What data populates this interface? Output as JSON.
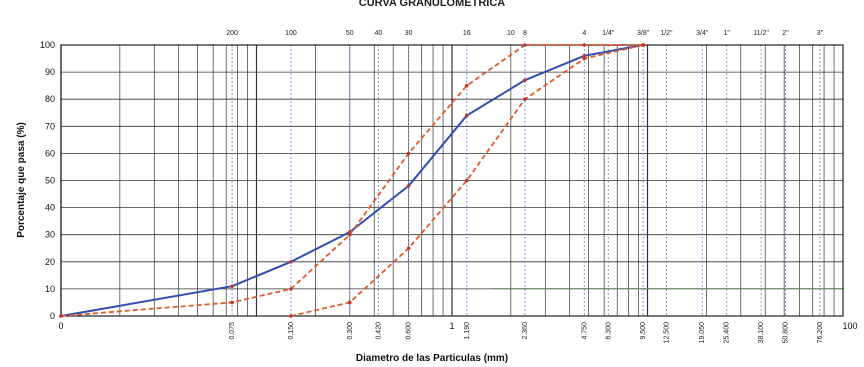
{
  "chart_data": {
    "type": "line",
    "title": "CURVA GRANULOMETRICA",
    "xlabel": "Diametro de las Particulas (mm)",
    "ylabel": "Porcentaje que pasa (%)",
    "x_scale": "log",
    "xlim": [
      0.01,
      100
    ],
    "ylim": [
      0,
      100
    ],
    "y_ticks": [
      0,
      10,
      20,
      30,
      40,
      50,
      60,
      70,
      80,
      90,
      100
    ],
    "x_end_labels": [
      {
        "x": 0.01,
        "text": "0"
      },
      {
        "x": 1,
        "text": "1"
      },
      {
        "x": 100,
        "text": "100"
      }
    ],
    "x_sieve_openings": [
      {
        "x": 0.075,
        "text": "0.075"
      },
      {
        "x": 0.15,
        "text": "0.150"
      },
      {
        "x": 0.3,
        "text": "0.300"
      },
      {
        "x": 0.42,
        "text": "0.420"
      },
      {
        "x": 0.6,
        "text": "0.600"
      },
      {
        "x": 1.19,
        "text": "1.190"
      },
      {
        "x": 2.36,
        "text": "2.360"
      },
      {
        "x": 4.75,
        "text": "4.750"
      },
      {
        "x": 6.3,
        "text": "6.300"
      },
      {
        "x": 9.5,
        "text": "9.500"
      },
      {
        "x": 12.5,
        "text": "12.500"
      },
      {
        "x": 19.05,
        "text": "19.050"
      },
      {
        "x": 25.4,
        "text": "25.400"
      },
      {
        "x": 38.1,
        "text": "38.100"
      },
      {
        "x": 50.8,
        "text": "50.800"
      },
      {
        "x": 76.2,
        "text": "76.200"
      }
    ],
    "sieve_names": [
      {
        "x": 0.075,
        "text": "200"
      },
      {
        "x": 0.15,
        "text": "100"
      },
      {
        "x": 0.3,
        "text": "50"
      },
      {
        "x": 0.42,
        "text": "40"
      },
      {
        "x": 0.6,
        "text": "30"
      },
      {
        "x": 1.19,
        "text": "16"
      },
      {
        "x": 2.0,
        "text": "10"
      },
      {
        "x": 2.36,
        "text": "8"
      },
      {
        "x": 4.75,
        "text": "4"
      },
      {
        "x": 6.3,
        "text": "1/4\""
      },
      {
        "x": 9.5,
        "text": "3/8\""
      },
      {
        "x": 12.5,
        "text": "1/2\""
      },
      {
        "x": 19.05,
        "text": "3/4\""
      },
      {
        "x": 25.4,
        "text": "1\""
      },
      {
        "x": 38.1,
        "text": "11/2\""
      },
      {
        "x": 50.8,
        "text": "2\""
      },
      {
        "x": 76.2,
        "text": "3\""
      }
    ],
    "series": [
      {
        "role": "gradation",
        "color": "#2f4fb3",
        "style": "solid",
        "points": [
          [
            0.01,
            0
          ],
          [
            0.075,
            11
          ],
          [
            0.15,
            20
          ],
          [
            0.3,
            31
          ],
          [
            0.6,
            48
          ],
          [
            1.19,
            74
          ],
          [
            2.36,
            87
          ],
          [
            4.75,
            96
          ],
          [
            9.5,
            100
          ]
        ]
      },
      {
        "role": "limit",
        "color": "#e05a2a",
        "style": "dashed",
        "points": [
          [
            0.01,
            0
          ],
          [
            0.075,
            5
          ],
          [
            0.15,
            10
          ],
          [
            0.3,
            30
          ],
          [
            0.6,
            60
          ],
          [
            1.19,
            85
          ],
          [
            2.36,
            100
          ],
          [
            4.75,
            100
          ],
          [
            9.5,
            100
          ]
        ]
      },
      {
        "role": "limit",
        "color": "#e05a2a",
        "style": "dashed",
        "points": [
          [
            0.15,
            0
          ],
          [
            0.3,
            5
          ],
          [
            0.6,
            25
          ],
          [
            1.19,
            50
          ],
          [
            2.36,
            80
          ],
          [
            4.75,
            95
          ],
          [
            9.5,
            100
          ]
        ]
      }
    ]
  },
  "colors": {
    "gradation_line": "#2f4fb3",
    "limit_lines": "#e05a2a",
    "grid": "#222222",
    "marker": "#c0392b"
  }
}
